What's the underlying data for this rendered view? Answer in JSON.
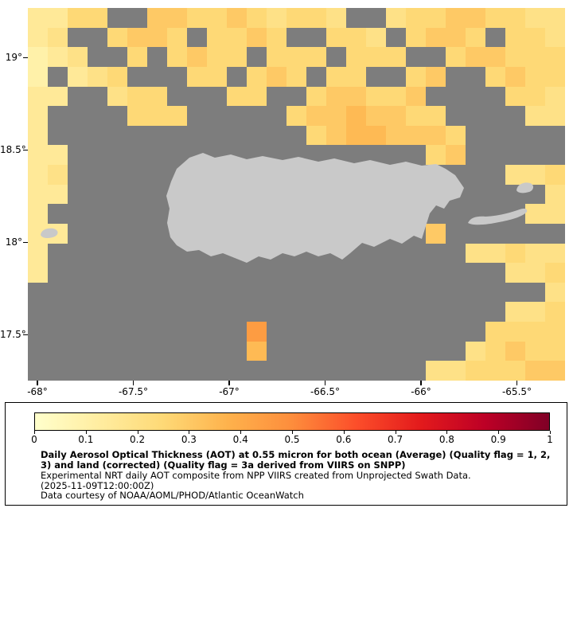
{
  "chart_data": {
    "type": "heatmap",
    "title": "Daily Aerosol Optical Thickness (AOT) at 0.55 micron for both ocean (Average) (Quality flag = 1, 2, 3) and land (corrected) (Quality flag = 3a derived from VIIRS on SNPP)",
    "subtitle": "Experimental NRT daily AOT composite from NPP VIIRS created from Unprojected Swath Data.",
    "timestamp": "(2025-11-09T12:00:00Z)",
    "credit": "Data courtesy of NOAA/AOML/PHOD/Atlantic OceanWatch",
    "x_tick_labels": [
      "-68°",
      "-67.5°",
      "-67°",
      "-66.5°",
      "-66°",
      "-65.5°"
    ],
    "y_tick_labels": [
      "19°",
      "18.5°",
      "18°",
      "17.5°"
    ],
    "colorbar_ticks": [
      "0",
      "0.1",
      "0.2",
      "0.3",
      "0.4",
      "0.5",
      "0.6",
      "0.7",
      "0.8",
      "0.9",
      "1"
    ],
    "value_range": [
      0,
      1
    ],
    "no_data_color": "#7d7d7d",
    "land_color": "#c9c9c9",
    "colormap": [
      [
        0,
        "#ffffcc"
      ],
      [
        0.125,
        "#ffeda0"
      ],
      [
        0.25,
        "#fed976"
      ],
      [
        0.375,
        "#feb24c"
      ],
      [
        0.5,
        "#fd8d3c"
      ],
      [
        0.625,
        "#fc4e2a"
      ],
      [
        0.75,
        "#e31a1c"
      ],
      [
        0.875,
        "#bd0026"
      ],
      [
        1,
        "#800026"
      ]
    ],
    "grid": {
      "cols": 27,
      "rows": 19,
      "no_data_char": ".",
      "value_map": {
        "1": 0.05,
        "2": 0.1,
        "3": 0.15,
        "4": 0.2,
        "5": 0.25,
        "6": 0.3,
        "7": 0.35,
        "8": 0.45
      },
      "rows_encoded": [
        "3355..6655654554..455665544",
        "34..5665.5565..554.5665.554",
        "234..5.5655.555.555..566555",
        "2.345...55.565.55..56..5655",
        "33..455...55..566556....554",
        "3....555.....56676655....44",
        "3.............56776665.....",
        "33..................56.....",
        "34......................445",
        "33........................4",
        "3........................44",
        "33..................6......",
        "3.....................44544",
        "3.......................445",
        "..........................4",
        "........................445",
        "...........8...........5555",
        "...........7..........45655",
        "....................4455566"
      ]
    }
  }
}
